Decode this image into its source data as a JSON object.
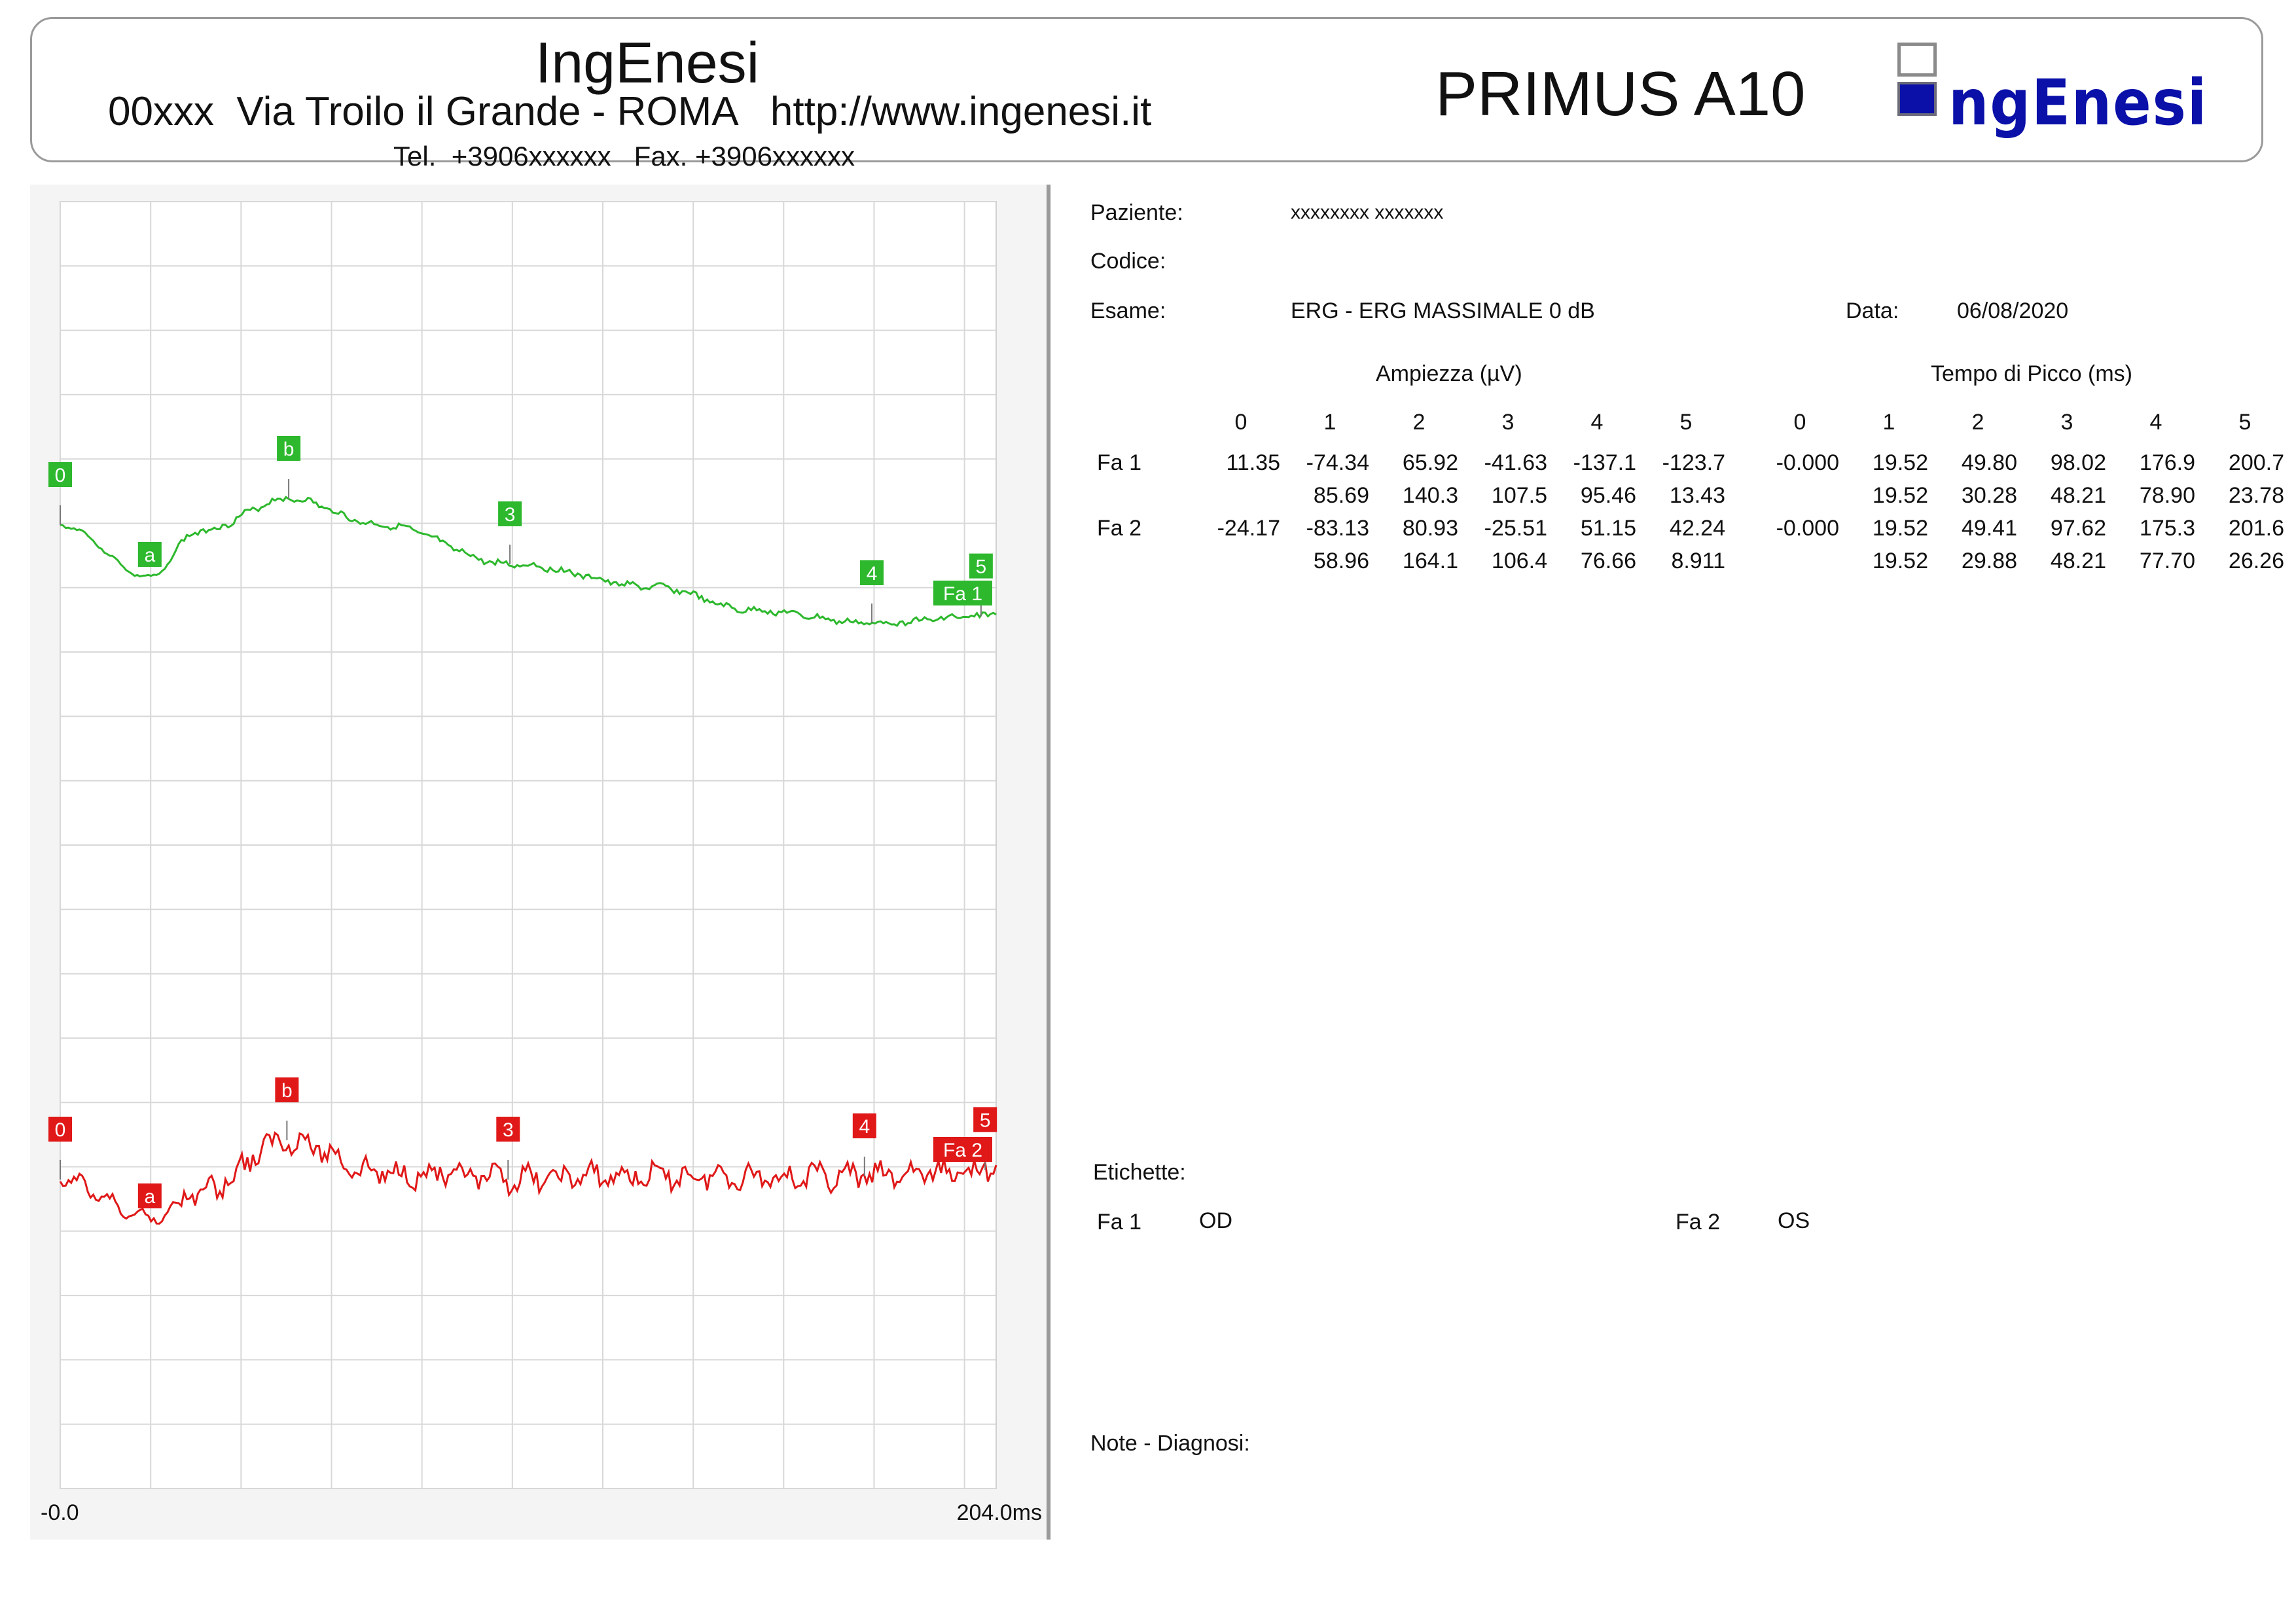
{
  "header": {
    "company": "IngEnesi",
    "address": "00xxx  Via Troilo il Grande - ROMA   http://www.ingenesi.it",
    "contacts": "Tel.  +3906xxxxxx   Fax. +3906xxxxxx",
    "product": "PRIMUS A10",
    "logo_text": "ngEnesi"
  },
  "patient": {
    "name_label": "Paziente:",
    "name_value": "xxxxxxxx  xxxxxxx",
    "code_label": "Codice:",
    "exam_label": "Esame:",
    "exam_value": "ERG - ERG MASSIMALE 0 dB",
    "date_label": "Data:",
    "date_value": "06/08/2020"
  },
  "results": {
    "amp_title": "Ampiezza (µV)",
    "time_title": "Tempo di Picco (ms)",
    "columns": [
      "0",
      "1",
      "2",
      "3",
      "4",
      "5"
    ],
    "rows": [
      {
        "label": "Fa 1",
        "amp": [
          "11.35",
          "-74.34",
          "65.92",
          "-41.63",
          "-137.1",
          "-123.7"
        ],
        "amp2": [
          "85.69",
          "140.3",
          "107.5",
          "95.46",
          "13.43"
        ],
        "time": [
          "-0.000",
          "19.52",
          "49.80",
          "98.02",
          "176.9",
          "200.7"
        ],
        "time2": [
          "19.52",
          "30.28",
          "48.21",
          "78.90",
          "23.78"
        ]
      },
      {
        "label": "Fa 2",
        "amp": [
          "-24.17",
          "-83.13",
          "80.93",
          "-25.51",
          "51.15",
          "42.24"
        ],
        "amp2": [
          "58.96",
          "164.1",
          "106.4",
          "76.66",
          "8.911"
        ],
        "time": [
          "-0.000",
          "19.52",
          "49.41",
          "97.62",
          "175.3",
          "201.6"
        ],
        "time2": [
          "19.52",
          "29.88",
          "48.21",
          "77.70",
          "26.26"
        ]
      }
    ]
  },
  "labels": {
    "title": "Etichette:",
    "fa1_label": "Fa 1",
    "fa1_value": "OD",
    "fa2_label": "Fa 2",
    "fa2_value": "OS"
  },
  "notes": {
    "title": "Note - Diagnosi:"
  },
  "chart_data": {
    "type": "line",
    "x_unit": "ms",
    "xlim": [
      0,
      204.0
    ],
    "x_start_label": "-0.0",
    "x_end_label": "204.0ms",
    "grid": true,
    "series": [
      {
        "name": "Fa 1",
        "color": "#2db82d",
        "markers": [
          {
            "label": "0",
            "t": 0.0
          },
          {
            "label": "a",
            "t": 19.52
          },
          {
            "label": "b",
            "t": 49.8
          },
          {
            "label": "3",
            "t": 98.02
          },
          {
            "label": "4",
            "t": 176.9
          },
          {
            "label": "5",
            "t": 200.7
          }
        ]
      },
      {
        "name": "Fa 2",
        "color": "#e01818",
        "markers": [
          {
            "label": "0",
            "t": 0.0
          },
          {
            "label": "a",
            "t": 19.52
          },
          {
            "label": "b",
            "t": 49.41
          },
          {
            "label": "3",
            "t": 97.62
          },
          {
            "label": "4",
            "t": 175.3
          },
          {
            "label": "5",
            "t": 201.6
          }
        ]
      }
    ]
  }
}
